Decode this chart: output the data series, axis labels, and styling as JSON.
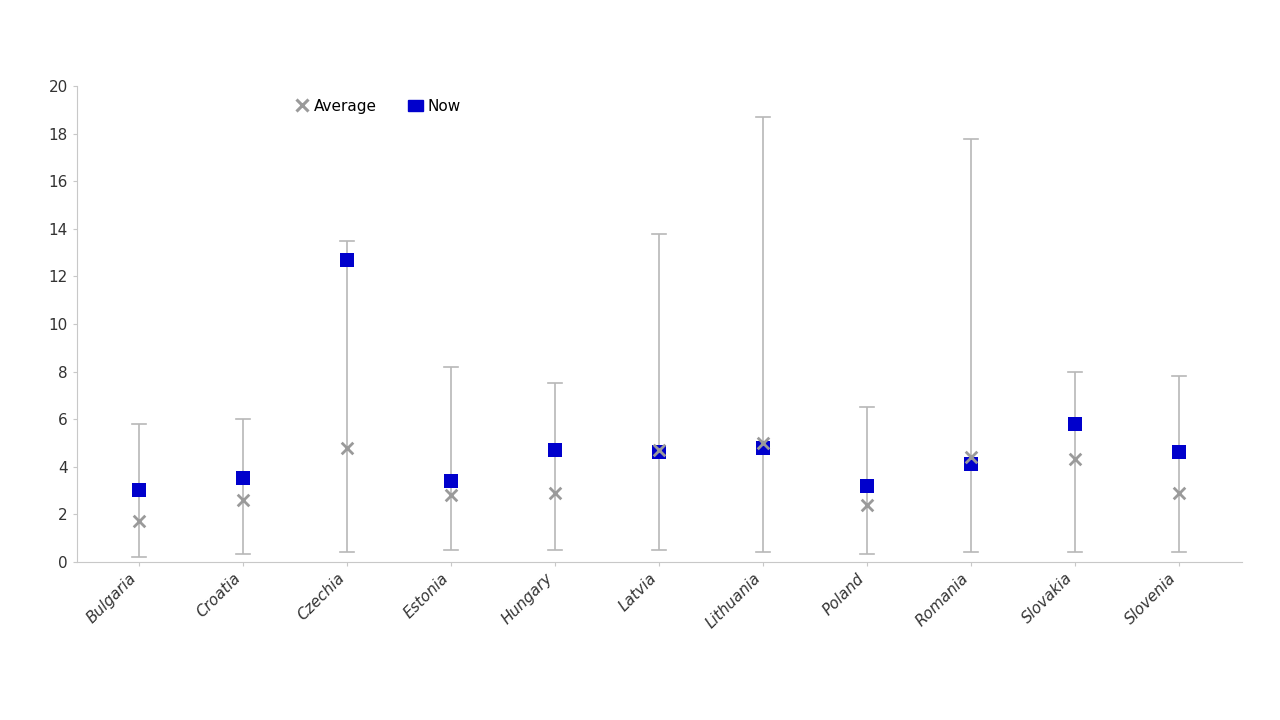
{
  "categories": [
    "Bulgaria",
    "Croatia",
    "Czechia",
    "Estonia",
    "Hungary",
    "Latvia",
    "Lithuania",
    "Poland",
    "Romania",
    "Slovakia",
    "Slovenia"
  ],
  "range_min": [
    0.2,
    0.3,
    0.4,
    0.5,
    0.5,
    0.5,
    0.4,
    0.3,
    0.4,
    0.4,
    0.4
  ],
  "range_max": [
    5.8,
    6.0,
    13.5,
    8.2,
    7.5,
    13.8,
    18.7,
    6.5,
    17.8,
    8.0,
    7.8
  ],
  "average": [
    1.7,
    2.6,
    4.8,
    2.8,
    2.9,
    4.7,
    5.0,
    2.4,
    4.4,
    4.3,
    2.9
  ],
  "now": [
    3.0,
    3.5,
    12.7,
    3.4,
    4.7,
    4.6,
    4.8,
    3.2,
    4.1,
    5.8,
    4.6
  ],
  "ylim": [
    0,
    20
  ],
  "yticks": [
    0,
    2,
    4,
    6,
    8,
    10,
    12,
    14,
    16,
    18,
    20
  ],
  "avg_color": "#9a9a9a",
  "now_color": "#0000cc",
  "range_color": "#b8b8b8",
  "background_color": "#ffffff",
  "legend_avg_label": "Average",
  "legend_now_label": "Now"
}
